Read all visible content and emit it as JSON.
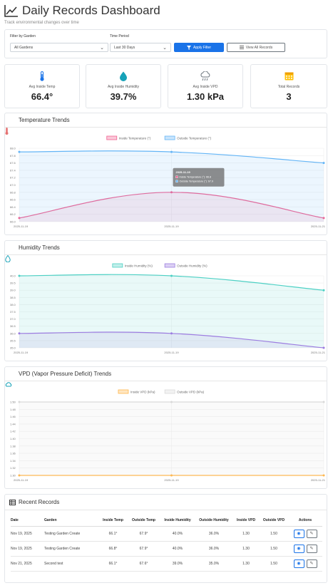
{
  "header": {
    "title": "Daily Records Dashboard",
    "subtitle": "Track environmental changes over time"
  },
  "filters": {
    "garden_label": "Filter by Garden",
    "garden_value": "All Gardens",
    "period_label": "Time Period",
    "period_value": "Last 30 Days",
    "apply_label": "Apply Filter",
    "view_all_label": "View All Records"
  },
  "stats": [
    {
      "label": "Avg Inside Temp",
      "value": "66.4°",
      "icon": "thermometer-icon",
      "color": "#1a73e8"
    },
    {
      "label": "Avg Inside Humidity",
      "value": "39.7%",
      "icon": "droplet-icon",
      "color": "#17a2b8"
    },
    {
      "label": "Avg Inside VPD",
      "value": "1.30 kPa",
      "icon": "cloud-rain-icon",
      "color": "#6c757d"
    },
    {
      "label": "Total Records",
      "value": "3",
      "icon": "calendar-icon",
      "color": "#f0ad00"
    }
  ],
  "chart_data": [
    {
      "type": "area",
      "title": "Temperature Trends",
      "x": [
        "2025-11-19",
        "2025-11-19",
        "2025-11-21"
      ],
      "series": [
        {
          "name": "Inside Temperature (°)",
          "values": [
            66.1,
            66.8,
            66.1
          ],
          "color": "#f06292"
        },
        {
          "name": "Outside Temperature (°)",
          "values": [
            67.9,
            67.9,
            67.6
          ],
          "color": "#64b5f6"
        }
      ],
      "ylim": [
        66.0,
        68.0
      ],
      "yticks": [
        "68.0",
        "67.8",
        "67.6",
        "67.4",
        "67.2",
        "67.0",
        "66.8",
        "66.6",
        "66.4",
        "66.2",
        "66.0"
      ],
      "tooltip": {
        "title": "2025-11-19",
        "lines": [
          "Inside Temperature (°): 66.8",
          "Outside Temperature (°): 67.9"
        ]
      }
    },
    {
      "type": "area",
      "title": "Humidity Trends",
      "x": [
        "2025-11-19",
        "2025-11-19",
        "2025-11-21"
      ],
      "series": [
        {
          "name": "Inside Humidity (%)",
          "values": [
            40.0,
            40.0,
            39.0
          ],
          "color": "#4dd0c4"
        },
        {
          "name": "Outside Humidity (%)",
          "values": [
            36.0,
            36.0,
            35.0
          ],
          "color": "#9c7ce0"
        }
      ],
      "ylim": [
        35.0,
        40.0
      ],
      "yticks": [
        "40.0",
        "39.5",
        "39.0",
        "38.5",
        "38.0",
        "37.5",
        "37.0",
        "36.5",
        "36.0",
        "35.5",
        "35.0"
      ]
    },
    {
      "type": "area",
      "title": "VPD (Vapor Pressure Deficit) Trends",
      "x": [
        "2025-11-19",
        "2025-11-19",
        "2025-11-21"
      ],
      "series": [
        {
          "name": "Inside VPD (kPa)",
          "values": [
            1.3,
            1.3,
            1.3
          ],
          "color": "#ffb74d"
        },
        {
          "name": "Outside VPD (kPa)",
          "values": [
            1.5,
            1.5,
            1.5
          ],
          "color": "#d9d9d9"
        }
      ],
      "ylim": [
        1.3,
        1.5
      ],
      "yticks": [
        "1.50",
        "1.48",
        "1.46",
        "1.44",
        "1.42",
        "1.40",
        "1.38",
        "1.36",
        "1.34",
        "1.32",
        "1.30"
      ]
    }
  ],
  "table": {
    "title": "Recent Records",
    "columns": [
      "Date",
      "Garden",
      "Inside Temp",
      "Outside Temp",
      "Inside Humidity",
      "Outside Humidity",
      "Inside VPD",
      "Outside VPD",
      "Actions"
    ],
    "rows": [
      [
        "Nov 19, 2025",
        "Testing Garden Create",
        "66.1°",
        "67.9°",
        "40.0%",
        "36.0%",
        "1.30",
        "1.50"
      ],
      [
        "Nov 19, 2025",
        "Testing Garden Create",
        "66.8°",
        "67.9°",
        "40.0%",
        "36.0%",
        "1.30",
        "1.50"
      ],
      [
        "Nov 21, 2025",
        "Second test",
        "66.1°",
        "67.6°",
        "39.0%",
        "35.0%",
        "1.30",
        "1.50"
      ]
    ]
  }
}
